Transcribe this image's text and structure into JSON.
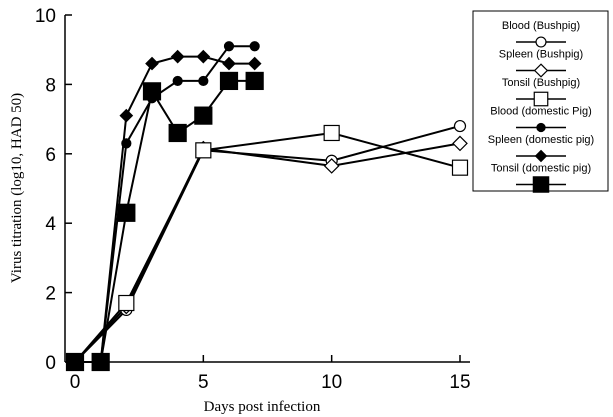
{
  "chart_data": {
    "type": "line",
    "xlabel": "Days post infection",
    "ylabel": "Virus titration (log10, HAD 50)",
    "xlim": [
      0,
      15
    ],
    "ylim": [
      0,
      10
    ],
    "xticks": [
      0,
      5,
      10,
      15
    ],
    "yticks": [
      0,
      2,
      4,
      6,
      8,
      10
    ],
    "grid": false,
    "legend_position": "right",
    "series": [
      {
        "name": "Blood (Bushpig)",
        "marker": "circle-open",
        "stroke": "#000000",
        "points": [
          [
            0,
            0
          ],
          [
            2,
            1.5
          ],
          [
            5,
            6.1
          ],
          [
            10,
            5.8
          ],
          [
            15,
            6.8
          ]
        ]
      },
      {
        "name": "Spleen (Bushpig)",
        "marker": "diamond-open",
        "stroke": "#000000",
        "points": [
          [
            0,
            0
          ],
          [
            2,
            1.6
          ],
          [
            5,
            6.15
          ],
          [
            10,
            5.65
          ],
          [
            15,
            6.3
          ]
        ]
      },
      {
        "name": "Tonsil (Bushpig)",
        "marker": "square-open",
        "stroke": "#000000",
        "points": [
          [
            0,
            0
          ],
          [
            2,
            1.7
          ],
          [
            5,
            6.1
          ],
          [
            10,
            6.6
          ],
          [
            15,
            5.6
          ]
        ]
      },
      {
        "name": "Blood (domestic Pig)",
        "marker": "circle-filled",
        "stroke": "#000000",
        "points": [
          [
            0,
            0
          ],
          [
            1,
            0
          ],
          [
            2,
            6.3
          ],
          [
            3,
            7.6
          ],
          [
            4,
            8.1
          ],
          [
            5,
            8.1
          ],
          [
            6,
            9.1
          ],
          [
            7,
            9.1
          ]
        ]
      },
      {
        "name": "Spleen (domestic pig)",
        "marker": "diamond-filled",
        "stroke": "#000000",
        "points": [
          [
            0,
            0
          ],
          [
            1,
            0
          ],
          [
            2,
            7.1
          ],
          [
            3,
            8.6
          ],
          [
            4,
            8.8
          ],
          [
            5,
            8.8
          ],
          [
            6,
            8.6
          ],
          [
            7,
            8.6
          ]
        ]
      },
      {
        "name": "Tonsil (domestic pig)",
        "marker": "square-filled",
        "stroke": "#000000",
        "points": [
          [
            0,
            0
          ],
          [
            1,
            0
          ],
          [
            2,
            4.3
          ],
          [
            3,
            7.8
          ],
          [
            4,
            6.6
          ],
          [
            5,
            7.1
          ],
          [
            6,
            8.1
          ],
          [
            7,
            8.1
          ]
        ]
      }
    ]
  }
}
